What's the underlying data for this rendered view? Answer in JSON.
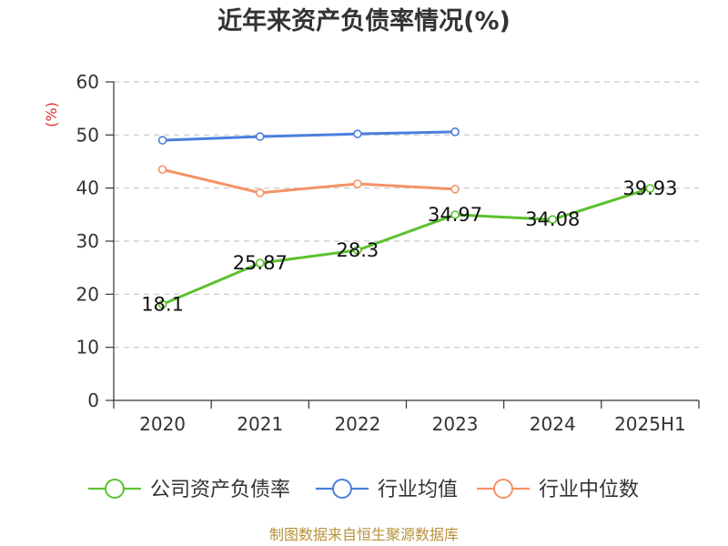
{
  "chart_data": {
    "type": "line",
    "title": "近年来资产负债率情况(%)",
    "ylabel": "(%)",
    "xlabel": "",
    "categories": [
      "2020",
      "2021",
      "2022",
      "2023",
      "2024",
      "2025H1"
    ],
    "ylim": [
      0,
      60
    ],
    "yticks": [
      0,
      10,
      20,
      30,
      40,
      50,
      60
    ],
    "grid": true,
    "legend_position": "bottom",
    "series": [
      {
        "name": "公司资产负债率",
        "color": "#5cc12f",
        "values": [
          18.1,
          25.87,
          28.3,
          34.97,
          34.08,
          39.93
        ],
        "data_labels": [
          "18.1",
          "25.87",
          "28.3",
          "34.97",
          "34.08",
          "39.93"
        ]
      },
      {
        "name": "行业均值",
        "color": "#4c7fdc",
        "values": [
          49.0,
          49.7,
          50.2,
          50.6,
          null,
          null
        ]
      },
      {
        "name": "行业中位数",
        "color": "#f59366",
        "values": [
          43.5,
          39.1,
          40.8,
          39.8,
          null,
          null
        ]
      }
    ],
    "unit_color": "#e0312b"
  },
  "footer": {
    "source": "制图数据来自恒生聚源数据库"
  }
}
